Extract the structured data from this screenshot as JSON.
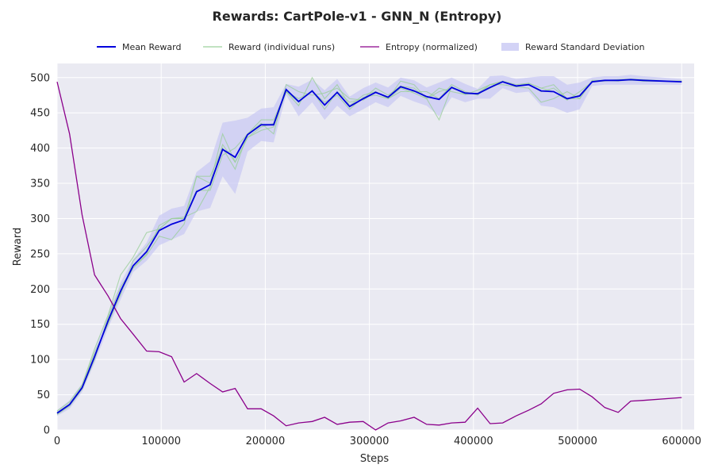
{
  "chart_data": {
    "type": "line",
    "title": "Rewards: CartPole-v1 - GNN_N (Entropy)",
    "xlabel": "Steps",
    "ylabel": "Reward",
    "xlim": [
      0,
      612000
    ],
    "ylim": [
      0,
      520
    ],
    "xticks": [
      0,
      100000,
      200000,
      300000,
      400000,
      500000,
      600000
    ],
    "yticks": [
      0,
      50,
      100,
      150,
      200,
      250,
      300,
      350,
      400,
      450,
      500
    ],
    "grid": true,
    "legend_position": "top",
    "x": [
      0,
      12000,
      24000,
      36000,
      49000,
      61000,
      73000,
      86000,
      98000,
      110000,
      122000,
      134000,
      147000,
      159000,
      171000,
      183000,
      196000,
      208000,
      220000,
      232000,
      245000,
      257000,
      269000,
      281000,
      294000,
      306000,
      318000,
      330000,
      343000,
      355000,
      367000,
      379000,
      392000,
      404000,
      416000,
      428000,
      441000,
      453000,
      465000,
      477000,
      490000,
      502000,
      514000,
      526000,
      539000,
      551000,
      563000,
      600000
    ],
    "series": [
      {
        "name": "Mean Reward",
        "color": "#0000dd",
        "values": [
          24,
          36,
          60,
          104,
          155,
          197,
          233,
          253,
          283,
          292,
          298,
          338,
          348,
          398,
          387,
          419,
          433,
          433,
          483,
          466,
          481,
          461,
          479,
          459,
          470,
          479,
          472,
          487,
          481,
          473,
          469,
          486,
          478,
          477,
          486,
          494,
          488,
          490,
          481,
          480,
          470,
          474,
          494,
          496,
          496,
          497,
          496,
          494
        ],
        "std_lower": [
          20,
          30,
          54,
          95,
          145,
          185,
          224,
          240,
          262,
          270,
          278,
          310,
          315,
          360,
          335,
          395,
          410,
          408,
          475,
          445,
          465,
          440,
          460,
          445,
          455,
          465,
          458,
          474,
          466,
          460,
          445,
          472,
          465,
          470,
          470,
          485,
          478,
          480,
          460,
          458,
          450,
          455,
          488,
          490,
          490,
          490,
          490,
          490
        ],
        "std_upper": [
          28,
          42,
          66,
          113,
          165,
          209,
          242,
          266,
          304,
          314,
          318,
          366,
          381,
          436,
          439,
          443,
          456,
          458,
          491,
          487,
          497,
          482,
          498,
          473,
          485,
          493,
          486,
          500,
          496,
          486,
          493,
          500,
          491,
          484,
          502,
          503,
          498,
          500,
          502,
          502,
          490,
          493,
          500,
          502,
          502,
          504,
          502,
          498
        ]
      },
      {
        "name": "Reward (individual runs)",
        "color": "#9cd09c",
        "runs": [
          [
            22,
            34,
            58,
            100,
            160,
            203,
            230,
            248,
            275,
            270,
            292,
            360,
            360,
            400,
            370,
            420,
            435,
            420,
            490,
            480,
            475,
            478,
            485,
            470,
            468,
            480,
            470,
            495,
            490,
            470,
            440,
            487,
            476,
            482,
            490,
            490,
            487,
            485,
            465,
            470,
            480,
            470,
            496,
            496,
            496,
            497,
            495,
            495
          ],
          [
            25,
            37,
            62,
            110,
            150,
            195,
            230,
            250,
            290,
            300,
            300,
            340,
            340,
            390,
            400,
            420,
            440,
            440,
            480,
            460,
            500,
            470,
            490,
            460,
            475,
            480,
            470,
            480,
            480,
            480,
            470,
            490,
            480,
            475,
            490,
            495,
            490,
            492,
            485,
            490,
            470,
            470,
            495,
            496,
            495,
            497,
            495,
            495
          ],
          [
            23,
            36,
            60,
            105,
            153,
            192,
            240,
            260,
            285,
            300,
            302,
            310,
            345,
            405,
            380,
            415,
            430,
            435,
            480,
            465,
            482,
            455,
            480,
            465,
            470,
            485,
            475,
            488,
            485,
            470,
            480,
            485,
            478,
            477,
            485,
            494,
            488,
            492,
            485,
            480,
            468,
            480,
            494,
            495,
            497,
            496,
            496,
            494
          ],
          [
            27,
            40,
            64,
            115,
            163,
            220,
            245,
            280,
            285,
            300,
            300,
            360,
            350,
            420,
            380,
            415,
            425,
            430,
            480,
            470,
            480,
            465,
            475,
            455,
            472,
            475,
            470,
            485,
            478,
            470,
            485,
            480,
            476,
            478,
            490,
            494,
            488,
            490,
            480,
            485,
            470,
            475,
            495,
            496,
            497,
            498,
            497,
            494
          ]
        ]
      },
      {
        "name": "Entropy (normalized)",
        "color": "#8b008b",
        "values": [
          494,
          420,
          305,
          220,
          190,
          158,
          136,
          112,
          111,
          104,
          68,
          80,
          66,
          54,
          59,
          30,
          30,
          20,
          6,
          10,
          12,
          18,
          8,
          11,
          12,
          0,
          10,
          13,
          18,
          8,
          7,
          10,
          11,
          31,
          9,
          10,
          20,
          28,
          37,
          52,
          57,
          58,
          47,
          32,
          25,
          41,
          42,
          46
        ]
      },
      {
        "name": "Reward Standard Deviation",
        "color": "#c8c8f4"
      }
    ]
  }
}
